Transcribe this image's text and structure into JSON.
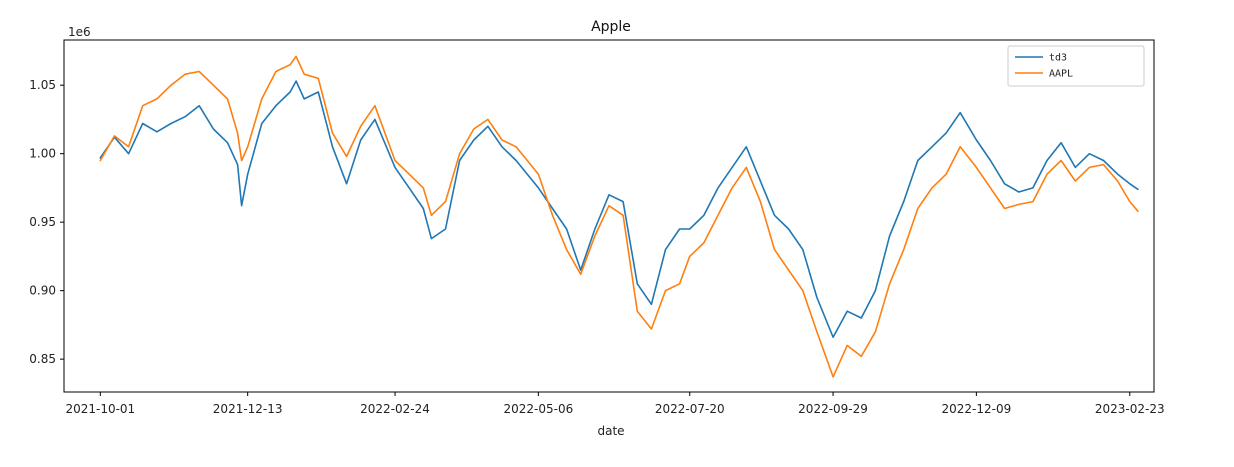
{
  "chart_data": {
    "type": "line",
    "title": "Apple",
    "xlabel": "date",
    "ylabel": "",
    "y_offset_label": "1e6",
    "x_range": [
      "2021-09-13",
      "2023-03-07"
    ],
    "ylim": [
      0.826,
      1.083
    ],
    "y_ticks": [
      {
        "value": 0.85,
        "label": "0.85"
      },
      {
        "value": 0.9,
        "label": "0.90"
      },
      {
        "value": 0.95,
        "label": "0.95"
      },
      {
        "value": 1.0,
        "label": "1.00"
      },
      {
        "value": 1.05,
        "label": "1.05"
      }
    ],
    "x_ticks": [
      "2021-10-01",
      "2021-12-13",
      "2022-02-24",
      "2022-05-06",
      "2022-07-20",
      "2022-09-29",
      "2022-12-09",
      "2023-02-23"
    ],
    "grid": false,
    "legend_position": "upper right",
    "series": [
      {
        "name": "td3",
        "color": "#1f77b4",
        "points": [
          [
            "2021-10-01",
            0.997
          ],
          [
            "2021-10-08",
            1.012
          ],
          [
            "2021-10-15",
            1.0
          ],
          [
            "2021-10-22",
            1.022
          ],
          [
            "2021-10-29",
            1.016
          ],
          [
            "2021-11-05",
            1.022
          ],
          [
            "2021-11-12",
            1.027
          ],
          [
            "2021-11-19",
            1.035
          ],
          [
            "2021-11-26",
            1.018
          ],
          [
            "2021-12-03",
            1.008
          ],
          [
            "2021-12-08",
            0.992
          ],
          [
            "2021-12-10",
            0.962
          ],
          [
            "2021-12-13",
            0.985
          ],
          [
            "2021-12-20",
            1.022
          ],
          [
            "2021-12-27",
            1.035
          ],
          [
            "2022-01-03",
            1.045
          ],
          [
            "2022-01-06",
            1.053
          ],
          [
            "2022-01-10",
            1.04
          ],
          [
            "2022-01-17",
            1.045
          ],
          [
            "2022-01-24",
            1.005
          ],
          [
            "2022-01-31",
            0.978
          ],
          [
            "2022-02-07",
            1.01
          ],
          [
            "2022-02-14",
            1.025
          ],
          [
            "2022-02-24",
            0.99
          ],
          [
            "2022-03-03",
            0.975
          ],
          [
            "2022-03-10",
            0.96
          ],
          [
            "2022-03-14",
            0.938
          ],
          [
            "2022-03-21",
            0.945
          ],
          [
            "2022-03-28",
            0.995
          ],
          [
            "2022-04-04",
            1.01
          ],
          [
            "2022-04-11",
            1.02
          ],
          [
            "2022-04-18",
            1.005
          ],
          [
            "2022-04-25",
            0.995
          ],
          [
            "2022-05-06",
            0.975
          ],
          [
            "2022-05-13",
            0.96
          ],
          [
            "2022-05-20",
            0.945
          ],
          [
            "2022-05-27",
            0.915
          ],
          [
            "2022-06-03",
            0.945
          ],
          [
            "2022-06-10",
            0.97
          ],
          [
            "2022-06-17",
            0.965
          ],
          [
            "2022-06-24",
            0.905
          ],
          [
            "2022-07-01",
            0.89
          ],
          [
            "2022-07-08",
            0.93
          ],
          [
            "2022-07-15",
            0.945
          ],
          [
            "2022-07-20",
            0.945
          ],
          [
            "2022-07-27",
            0.955
          ],
          [
            "2022-08-03",
            0.975
          ],
          [
            "2022-08-10",
            0.99
          ],
          [
            "2022-08-17",
            1.005
          ],
          [
            "2022-08-24",
            0.98
          ],
          [
            "2022-08-31",
            0.955
          ],
          [
            "2022-09-07",
            0.945
          ],
          [
            "2022-09-14",
            0.93
          ],
          [
            "2022-09-21",
            0.895
          ],
          [
            "2022-09-29",
            0.866
          ],
          [
            "2022-10-06",
            0.885
          ],
          [
            "2022-10-13",
            0.88
          ],
          [
            "2022-10-20",
            0.9
          ],
          [
            "2022-10-27",
            0.94
          ],
          [
            "2022-11-03",
            0.965
          ],
          [
            "2022-11-10",
            0.995
          ],
          [
            "2022-11-17",
            1.005
          ],
          [
            "2022-11-24",
            1.015
          ],
          [
            "2022-12-01",
            1.03
          ],
          [
            "2022-12-09",
            1.01
          ],
          [
            "2022-12-16",
            0.995
          ],
          [
            "2022-12-23",
            0.978
          ],
          [
            "2022-12-30",
            0.972
          ],
          [
            "2023-01-06",
            0.975
          ],
          [
            "2023-01-13",
            0.995
          ],
          [
            "2023-01-20",
            1.008
          ],
          [
            "2023-01-27",
            0.99
          ],
          [
            "2023-02-03",
            1.0
          ],
          [
            "2023-02-10",
            0.995
          ],
          [
            "2023-02-17",
            0.985
          ],
          [
            "2023-02-23",
            0.978
          ],
          [
            "2023-02-27",
            0.974
          ]
        ]
      },
      {
        "name": "AAPL",
        "color": "#ff7f0e",
        "points": [
          [
            "2021-10-01",
            0.995
          ],
          [
            "2021-10-08",
            1.013
          ],
          [
            "2021-10-15",
            1.005
          ],
          [
            "2021-10-22",
            1.035
          ],
          [
            "2021-10-29",
            1.04
          ],
          [
            "2021-11-05",
            1.05
          ],
          [
            "2021-11-12",
            1.058
          ],
          [
            "2021-11-19",
            1.06
          ],
          [
            "2021-11-26",
            1.05
          ],
          [
            "2021-12-03",
            1.04
          ],
          [
            "2021-12-08",
            1.015
          ],
          [
            "2021-12-10",
            0.995
          ],
          [
            "2021-12-13",
            1.005
          ],
          [
            "2021-12-20",
            1.04
          ],
          [
            "2021-12-27",
            1.06
          ],
          [
            "2022-01-03",
            1.065
          ],
          [
            "2022-01-06",
            1.071
          ],
          [
            "2022-01-10",
            1.058
          ],
          [
            "2022-01-17",
            1.055
          ],
          [
            "2022-01-24",
            1.015
          ],
          [
            "2022-01-31",
            0.998
          ],
          [
            "2022-02-07",
            1.02
          ],
          [
            "2022-02-14",
            1.035
          ],
          [
            "2022-02-24",
            0.995
          ],
          [
            "2022-03-03",
            0.985
          ],
          [
            "2022-03-10",
            0.975
          ],
          [
            "2022-03-14",
            0.955
          ],
          [
            "2022-03-21",
            0.965
          ],
          [
            "2022-03-28",
            1.0
          ],
          [
            "2022-04-04",
            1.018
          ],
          [
            "2022-04-11",
            1.025
          ],
          [
            "2022-04-18",
            1.01
          ],
          [
            "2022-04-25",
            1.005
          ],
          [
            "2022-05-06",
            0.985
          ],
          [
            "2022-05-13",
            0.955
          ],
          [
            "2022-05-20",
            0.93
          ],
          [
            "2022-05-27",
            0.912
          ],
          [
            "2022-06-03",
            0.94
          ],
          [
            "2022-06-10",
            0.962
          ],
          [
            "2022-06-17",
            0.955
          ],
          [
            "2022-06-24",
            0.885
          ],
          [
            "2022-07-01",
            0.872
          ],
          [
            "2022-07-08",
            0.9
          ],
          [
            "2022-07-15",
            0.905
          ],
          [
            "2022-07-20",
            0.925
          ],
          [
            "2022-07-27",
            0.935
          ],
          [
            "2022-08-03",
            0.955
          ],
          [
            "2022-08-10",
            0.975
          ],
          [
            "2022-08-17",
            0.99
          ],
          [
            "2022-08-24",
            0.965
          ],
          [
            "2022-08-31",
            0.93
          ],
          [
            "2022-09-07",
            0.915
          ],
          [
            "2022-09-14",
            0.9
          ],
          [
            "2022-09-21",
            0.87
          ],
          [
            "2022-09-29",
            0.837
          ],
          [
            "2022-10-06",
            0.86
          ],
          [
            "2022-10-13",
            0.852
          ],
          [
            "2022-10-20",
            0.87
          ],
          [
            "2022-10-27",
            0.905
          ],
          [
            "2022-11-03",
            0.93
          ],
          [
            "2022-11-10",
            0.96
          ],
          [
            "2022-11-17",
            0.975
          ],
          [
            "2022-11-24",
            0.985
          ],
          [
            "2022-12-01",
            1.005
          ],
          [
            "2022-12-09",
            0.99
          ],
          [
            "2022-12-16",
            0.975
          ],
          [
            "2022-12-23",
            0.96
          ],
          [
            "2022-12-30",
            0.963
          ],
          [
            "2023-01-06",
            0.965
          ],
          [
            "2023-01-13",
            0.985
          ],
          [
            "2023-01-20",
            0.995
          ],
          [
            "2023-01-27",
            0.98
          ],
          [
            "2023-02-03",
            0.99
          ],
          [
            "2023-02-10",
            0.992
          ],
          [
            "2023-02-17",
            0.98
          ],
          [
            "2023-02-23",
            0.965
          ],
          [
            "2023-02-27",
            0.958
          ]
        ]
      }
    ]
  }
}
